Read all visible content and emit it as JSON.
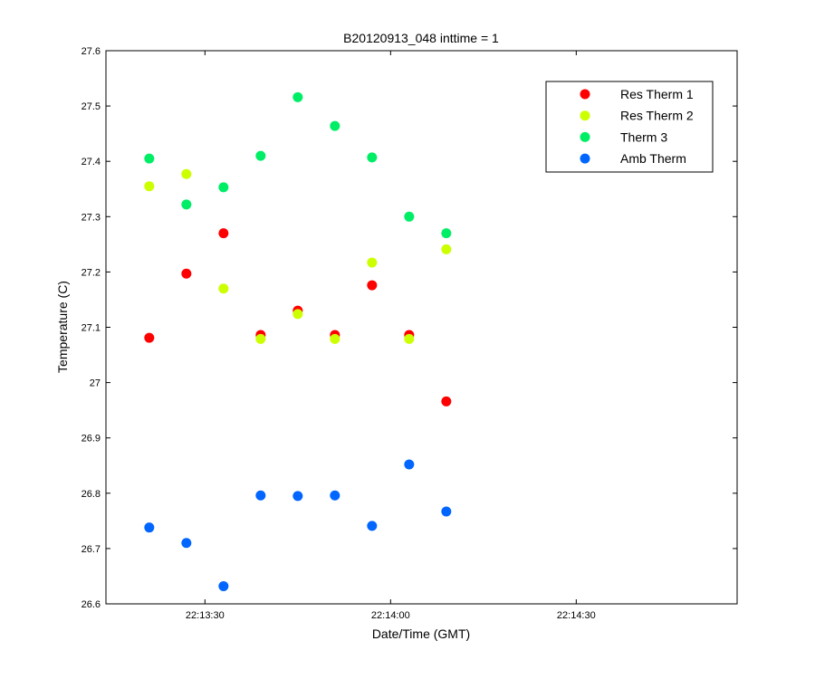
{
  "chart_data": {
    "type": "scatter",
    "title": "B20120913_048 inttime = 1",
    "xlabel": "Date/Time (GMT)",
    "ylabel": "Temperature (C)",
    "xlim": [
      "22:13:14",
      "22:14:56"
    ],
    "ylim": [
      26.6,
      27.6
    ],
    "yticks": [
      "26.6",
      "26.7",
      "26.8",
      "26.9",
      "27",
      "27.1",
      "27.2",
      "27.3",
      "27.4",
      "27.5",
      "27.6"
    ],
    "xticks": [
      "22:13:30",
      "22:14:00",
      "22:14:30"
    ],
    "grid": false,
    "legend_position": "top-right",
    "x": [
      "22:13:21",
      "22:13:27",
      "22:13:33",
      "22:13:39",
      "22:13:45",
      "22:13:51",
      "22:13:57",
      "22:14:03",
      "22:14:09"
    ],
    "series": [
      {
        "name": "Res Therm 1",
        "color": "#ff0000",
        "values": [
          27.081,
          27.197,
          27.27,
          27.086,
          27.13,
          27.086,
          27.176,
          27.086,
          26.966
        ]
      },
      {
        "name": "Res Therm 2",
        "color": "#ccff00",
        "values": [
          27.355,
          27.377,
          27.17,
          27.079,
          27.124,
          27.079,
          27.217,
          27.079,
          27.241
        ]
      },
      {
        "name": "Therm 3",
        "color": "#00ee66",
        "values": [
          27.405,
          27.322,
          27.353,
          27.41,
          27.516,
          27.464,
          27.407,
          27.3,
          27.27
        ]
      },
      {
        "name": "Amb Therm",
        "color": "#0066ff",
        "values": [
          26.738,
          26.71,
          26.632,
          26.796,
          26.795,
          26.796,
          26.741,
          26.852,
          26.767
        ]
      }
    ]
  }
}
